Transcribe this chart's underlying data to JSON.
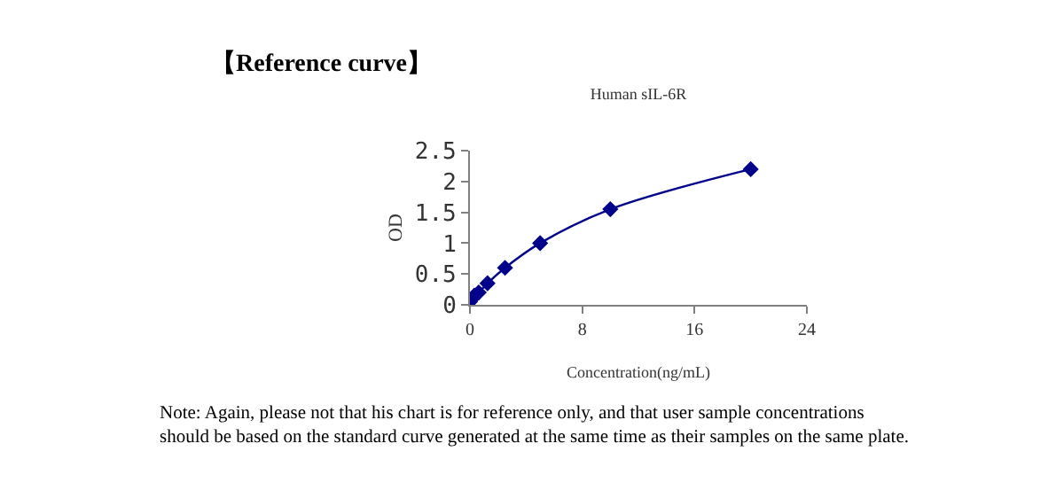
{
  "chart_data": {
    "type": "line",
    "title": "Human sIL-6R",
    "xlabel": "Concentration(ng/mL)",
    "ylabel": "OD",
    "annotations": [
      "【Reference curve】",
      "Note: Again, please not that his chart is for reference only, and that user sample concentrations should be based on the standard curve generated at the same time as their samples on the same plate."
    ],
    "x": [
      0,
      0.156,
      0.3125,
      0.625,
      1.25,
      2.5,
      5,
      10,
      20
    ],
    "series": [
      {
        "color": "#00008b",
        "values": [
          0.05,
          0.1,
          0.15,
          0.2,
          0.35,
          0.6,
          1.0,
          1.55,
          2.2
        ]
      }
    ],
    "xlim": [
      0,
      24
    ],
    "xticks": [
      0,
      8,
      16,
      24
    ],
    "ylim": [
      0,
      2.5
    ],
    "yticks": [
      0,
      0.5,
      1,
      1.5,
      2,
      2.5
    ],
    "marker": "diamond"
  }
}
